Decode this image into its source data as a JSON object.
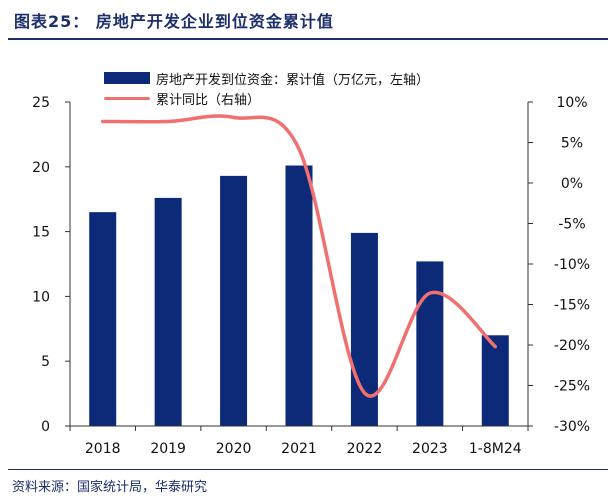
{
  "header": {
    "title": "图表25：  房地产开发企业到位资金累计值"
  },
  "legend": {
    "bar_label": "房地产开发到位资金：累计值（万亿元，左轴）",
    "line_label": "累计同比（右轴）"
  },
  "footer": {
    "source": "资料来源：国家统计局，华泰研究"
  },
  "colors": {
    "bar": "#0c2a78",
    "line": "#f07070",
    "accent": "#1d2f6b"
  },
  "chart_data": {
    "type": "bar",
    "categories": [
      "2018",
      "2019",
      "2020",
      "2021",
      "2022",
      "2023",
      "1-8M24"
    ],
    "series": [
      {
        "name": "房地产开发到位资金：累计值（万亿元，左轴）",
        "type": "bar",
        "axis": "left",
        "values": [
          16.5,
          17.6,
          19.3,
          20.1,
          14.9,
          12.7,
          7.0
        ]
      },
      {
        "name": "累计同比（右轴）",
        "type": "line",
        "axis": "right",
        "smooth": true,
        "values": [
          7.6,
          7.6,
          8.1,
          4.2,
          -25.9,
          -13.6,
          -20.2
        ]
      }
    ],
    "ylim": [
      0,
      25
    ],
    "yticks": [
      "0",
      "5",
      "10",
      "15",
      "20",
      "25"
    ],
    "y2lim": [
      -30,
      10
    ],
    "y2ticks": [
      "-30%",
      "-25%",
      "-20%",
      "-15%",
      "-10%",
      "-5%",
      "0%",
      "5%",
      "10%"
    ],
    "grid": false,
    "legend_position": "top-left"
  }
}
